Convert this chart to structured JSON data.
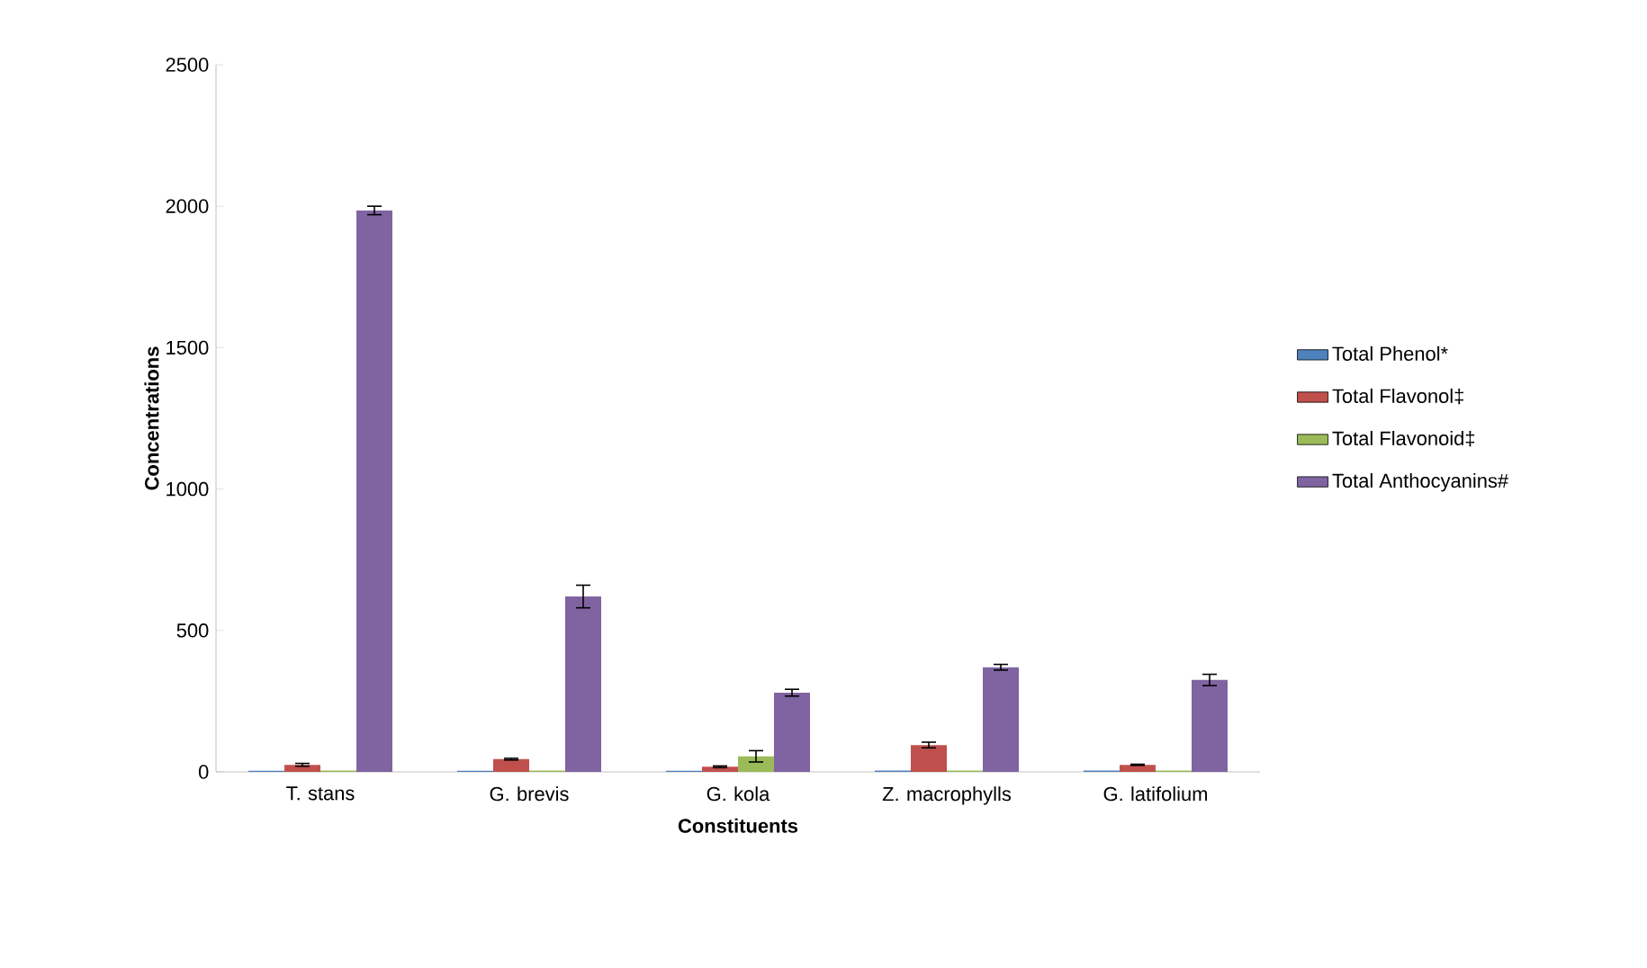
{
  "chart_data": {
    "type": "bar",
    "xlabel": "Constituents",
    "ylabel": "Concentrations",
    "categories": [
      "T. stans",
      "G. brevis",
      "G. kola",
      "Z. macrophylls",
      "G. latifolium"
    ],
    "series": [
      {
        "name": "Total Phenol*",
        "color": "#4f81bd",
        "values": [
          4,
          4,
          4,
          5,
          5
        ]
      },
      {
        "name": "Total Flavonol‡",
        "color": "#c0504d",
        "values": [
          25,
          45,
          18,
          95,
          25
        ],
        "errors": [
          5,
          3,
          3,
          10,
          2
        ]
      },
      {
        "name": "Total Flavonoid‡",
        "color": "#9bbb59",
        "values": [
          5,
          5,
          55,
          5,
          5
        ],
        "errors": [
          null,
          null,
          20,
          null,
          null
        ]
      },
      {
        "name": "Total Anthocyanins#",
        "color": "#8064a2",
        "values": [
          1985,
          620,
          280,
          370,
          325
        ],
        "errors": [
          15,
          40,
          12,
          10,
          20
        ]
      }
    ],
    "ylim": [
      0,
      2500
    ],
    "yticks": [
      0,
      500,
      1000,
      1500,
      2000,
      2500
    ],
    "grid": false,
    "legend": "right"
  }
}
